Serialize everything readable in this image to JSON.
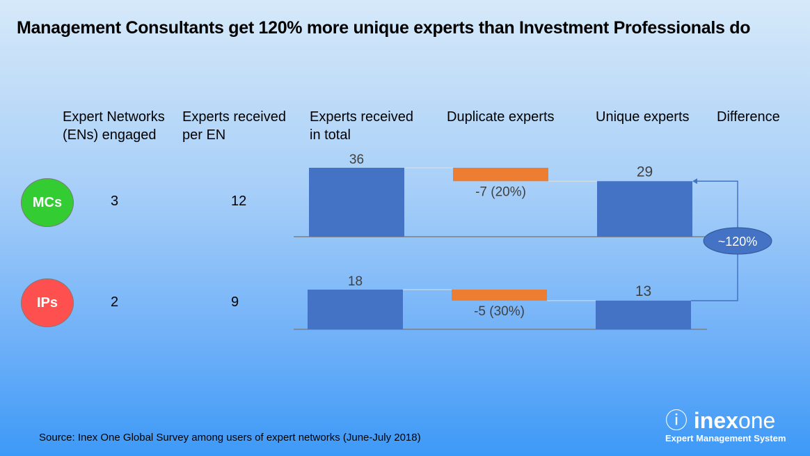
{
  "title": "Management Consultants get 120% more unique experts than Investment Professionals do",
  "headers": [
    "Expert Networks\n(ENs) engaged",
    "Experts received\nper EN",
    "Experts received\nin total",
    "Duplicate experts",
    "Unique experts",
    "Difference"
  ],
  "rows": [
    {
      "label": "MCs",
      "color": "#33cc33",
      "ens": "3",
      "per_en": "12"
    },
    {
      "label": "IPs",
      "color": "#ff5050",
      "ens": "2",
      "per_en": "9"
    }
  ],
  "chart_data": {
    "type": "bar",
    "subtype": "waterfall",
    "categories": [
      "Experts received in total",
      "Duplicate experts",
      "Unique experts"
    ],
    "series": [
      {
        "name": "MCs",
        "values": [
          36,
          -7,
          29
        ],
        "labels": [
          "36",
          "-7 (20%)",
          "29"
        ]
      },
      {
        "name": "IPs",
        "values": [
          18,
          -5,
          13
        ],
        "labels": [
          "18",
          "-5 (30%)",
          "13"
        ]
      }
    ],
    "difference_label": "~120%",
    "colors": {
      "total": "#4472c4",
      "decrease": "#ed7d31",
      "connector": "#4472c4"
    }
  },
  "source": "Source:  Inex One Global Survey among users of expert networks (June-July 2018)",
  "logo": {
    "bold": "inex",
    "light": "one",
    "tagline": "Expert Management System"
  }
}
